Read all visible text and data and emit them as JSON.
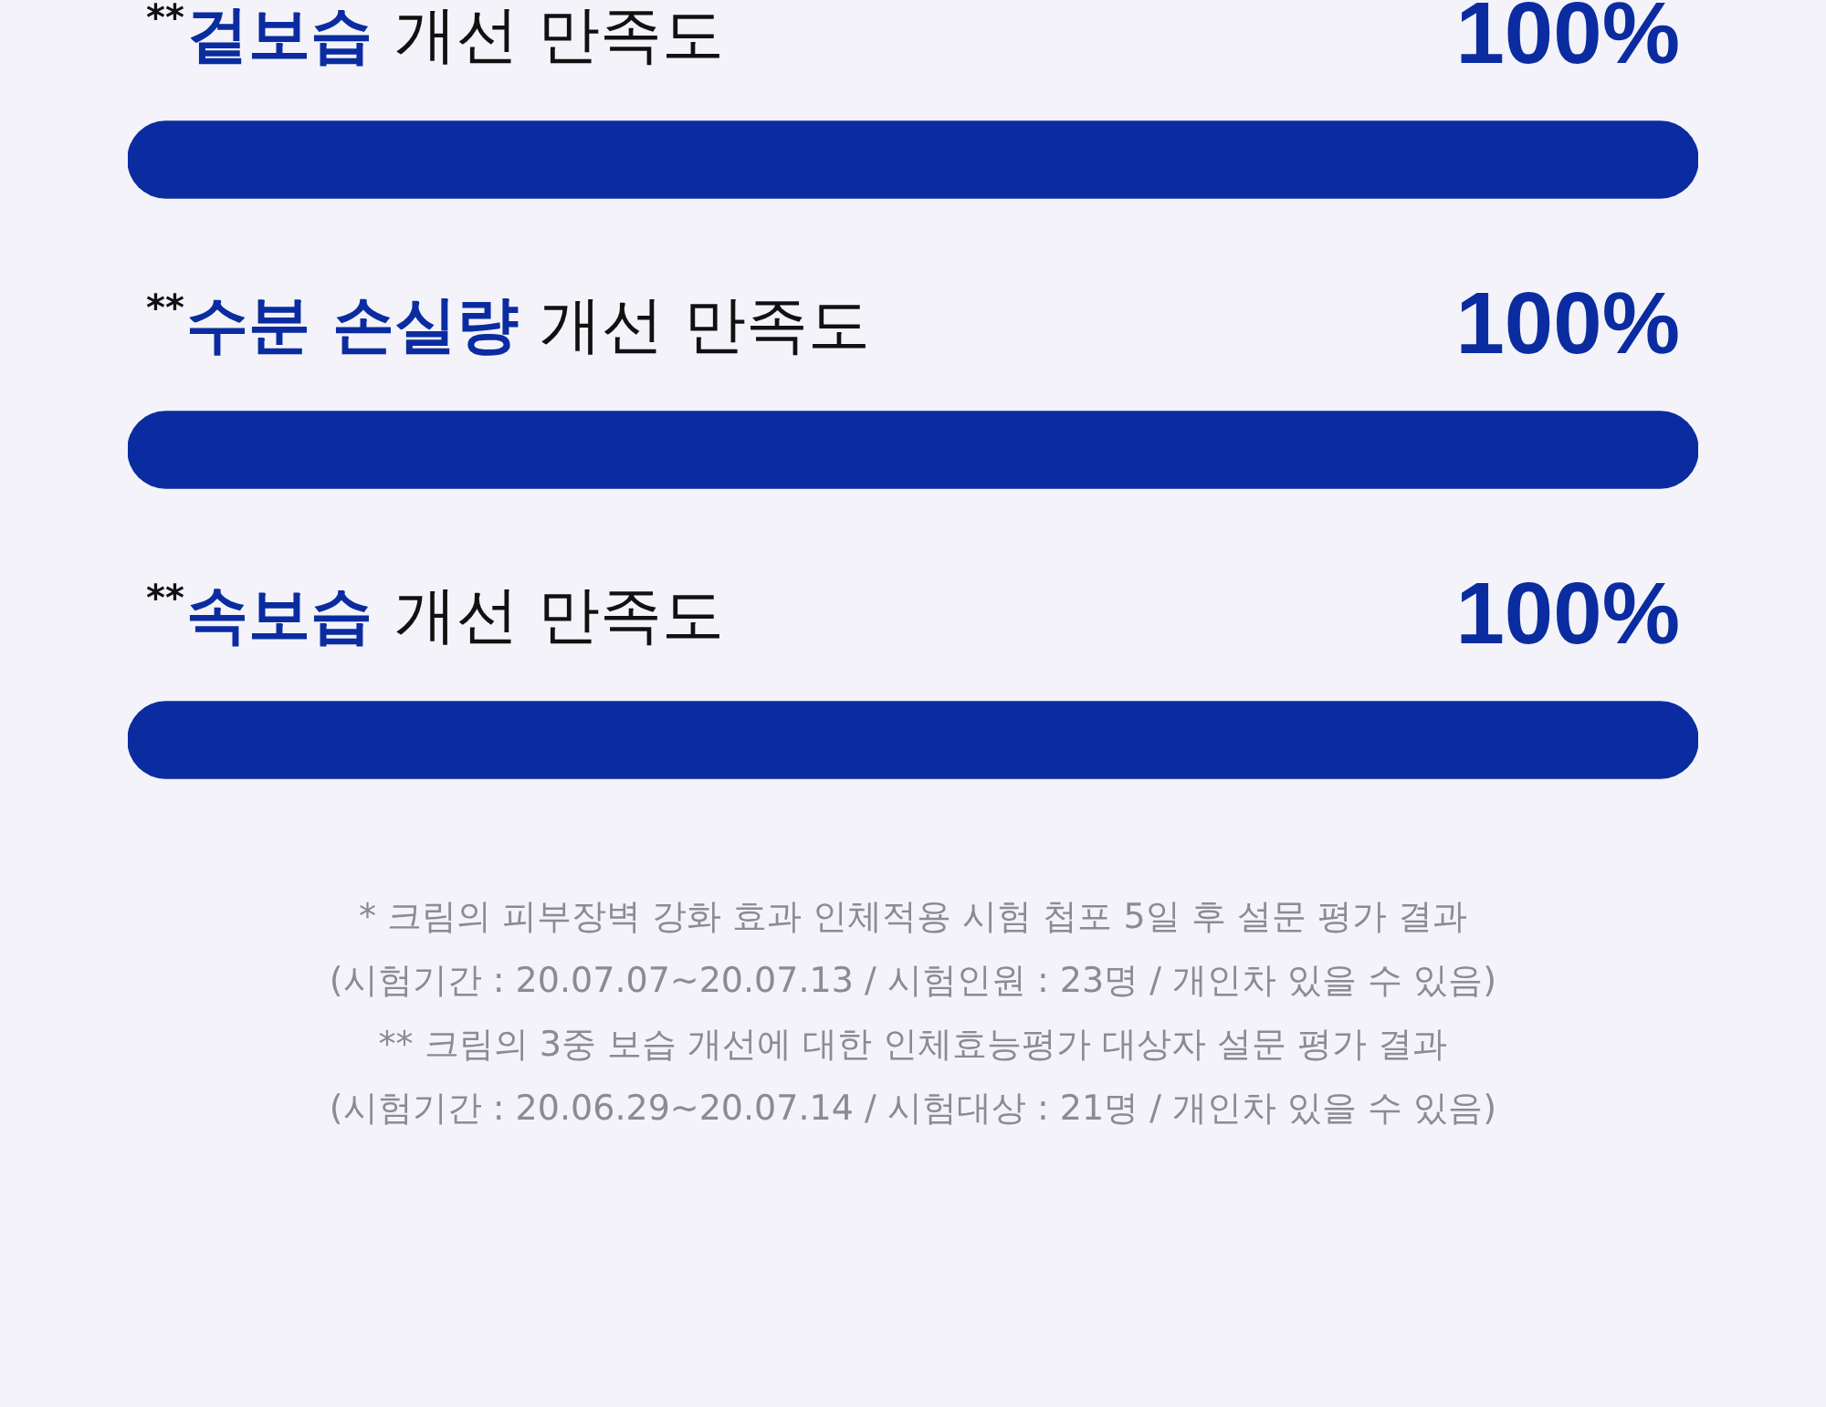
{
  "chart_data": {
    "type": "bar",
    "orientation": "horizontal",
    "categories": [
      "$^{**}$겉보습 개선 만족도",
      "$^{**}$수분 손실량 개선 만족도",
      "$^{**}$속보습 개선 만족도"
    ],
    "values": [
      100,
      100,
      100
    ],
    "color": "#0b2ca0",
    "value_labels": [
      "100%",
      "100%",
      "100%"
    ],
    "tick_labels": "y",
    "annotations": [
      "* 크림의 피부장벽 강화 효과 인체적용 시험 첩포 5일 후 설문 평가 결과",
      "(시험기간 : 20.07.07~20.07.13 / 시험인원 : 23명 / 개인차 있을 수 있음)",
      "** 크림의 3중 보습 개선에 대한 인체효능평가 대상자 설문 평가 결과",
      "(시험기간 : 20.06.29~20.07.14 / 시험대상 : 21명 / 개인차 있을 수 있음)"
    ]
  }
}
